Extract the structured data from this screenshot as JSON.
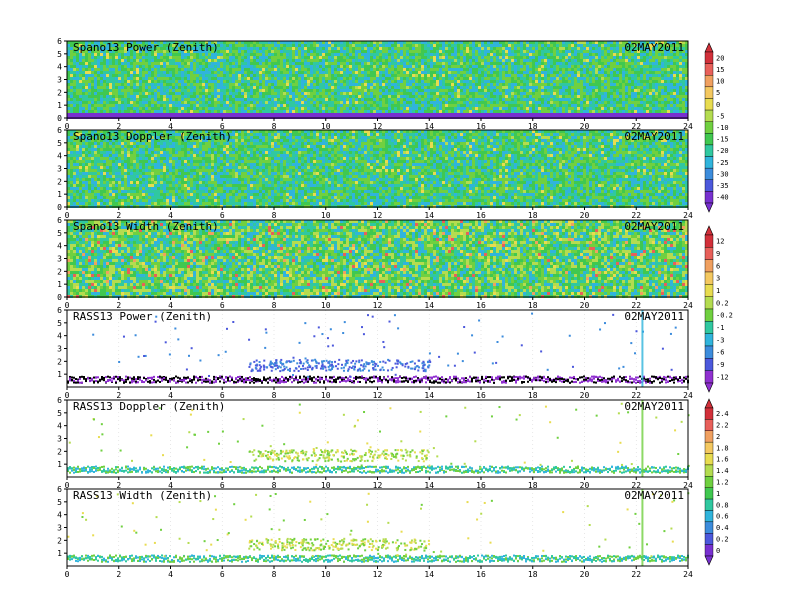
{
  "chart_data": [
    {
      "type": "heatmap",
      "title": "Spano13 Power (Zenith)",
      "date": "02MAY2011",
      "xlim": [
        0,
        24
      ],
      "ylim": [
        0,
        6
      ],
      "xticks": [
        0,
        2,
        4,
        6,
        8,
        10,
        12,
        14,
        16,
        18,
        20,
        22,
        24
      ],
      "yticks": [
        0,
        1,
        2,
        3,
        4,
        5,
        6
      ],
      "style": "dense",
      "note_values": "field is a colored sodar time–height image; typical Power about -20"
    },
    {
      "type": "heatmap",
      "title": "Spano13 Doppler (Zenith)",
      "date": "02MAY2011",
      "xlim": [
        0,
        24
      ],
      "ylim": [
        0,
        6
      ],
      "xticks": [
        0,
        2,
        4,
        6,
        8,
        10,
        12,
        14,
        16,
        18,
        20,
        22,
        24
      ],
      "yticks": [
        0,
        1,
        2,
        3,
        4,
        5,
        6
      ],
      "style": "dense"
    },
    {
      "type": "heatmap",
      "title": "Spano13 Width (Zenith)",
      "date": "02MAY2011",
      "xlim": [
        0,
        24
      ],
      "ylim": [
        0,
        6
      ],
      "xticks": [
        0,
        2,
        4,
        6,
        8,
        10,
        12,
        14,
        16,
        18,
        20,
        22,
        24
      ],
      "yticks": [
        0,
        1,
        2,
        3,
        4,
        5,
        6
      ],
      "style": "dense"
    },
    {
      "type": "heatmap",
      "title": "RASS13 Power (Zenith)",
      "date": "02MAY2011",
      "xlim": [
        0,
        24
      ],
      "ylim": [
        0,
        6
      ],
      "xticks": [
        0,
        2,
        4,
        6,
        8,
        10,
        12,
        14,
        16,
        18,
        20,
        22,
        24
      ],
      "yticks": [
        1,
        2,
        3,
        4,
        5,
        6
      ],
      "style": "sparse"
    },
    {
      "type": "heatmap",
      "title": "RASS13 Doppler (Zenith)",
      "date": "02MAY2011",
      "xlim": [
        0,
        24
      ],
      "ylim": [
        0,
        6
      ],
      "xticks": [
        0,
        2,
        4,
        6,
        8,
        10,
        12,
        14,
        16,
        18,
        20,
        22,
        24
      ],
      "yticks": [
        1,
        2,
        3,
        4,
        5,
        6
      ],
      "style": "sparse"
    },
    {
      "type": "heatmap",
      "title": "RASS13 Width (Zenith)",
      "date": "02MAY2011",
      "xlim": [
        0,
        24
      ],
      "ylim": [
        0,
        6
      ],
      "xticks": [
        0,
        2,
        4,
        6,
        8,
        10,
        12,
        14,
        16,
        18,
        20,
        22,
        24
      ],
      "yticks": [
        1,
        2,
        3,
        4,
        5,
        6
      ],
      "style": "sparse"
    }
  ],
  "colorbars": [
    {
      "labels": [
        "20",
        "15",
        "10",
        "5",
        "0",
        "-5",
        "-10",
        "-15",
        "-20",
        "-25",
        "-30",
        "-35",
        "-40"
      ],
      "colors": [
        "#d2303a",
        "#e8605a",
        "#f0a060",
        "#f4c860",
        "#e8dc50",
        "#b4dc50",
        "#70d040",
        "#40c850",
        "#30c8a0",
        "#30b4dc",
        "#3c8cdc",
        "#4c58dc",
        "#7830d0"
      ]
    },
    {
      "labels": [
        "12",
        "9",
        "6",
        "3",
        "1",
        "0.2",
        "-0.2",
        "-1",
        "-3",
        "-6",
        "-9",
        "-12"
      ],
      "colors": [
        "#d2303a",
        "#e8605a",
        "#f0a060",
        "#f4c860",
        "#e8dc50",
        "#b4dc50",
        "#70d040",
        "#30c8a0",
        "#30b4dc",
        "#3c8cdc",
        "#4c58dc",
        "#9030d0"
      ]
    },
    {
      "labels": [
        "2.4",
        "2.2",
        "2",
        "1.8",
        "1.6",
        "1.4",
        "1.2",
        "1",
        "0.8",
        "0.6",
        "0.4",
        "0.2",
        "0"
      ],
      "colors": [
        "#d2303a",
        "#e8605a",
        "#f0a060",
        "#f4c860",
        "#e8dc50",
        "#b4dc50",
        "#70d040",
        "#40c850",
        "#30c8a0",
        "#30b4dc",
        "#3c8cdc",
        "#4c58dc",
        "#7830d0"
      ]
    }
  ]
}
